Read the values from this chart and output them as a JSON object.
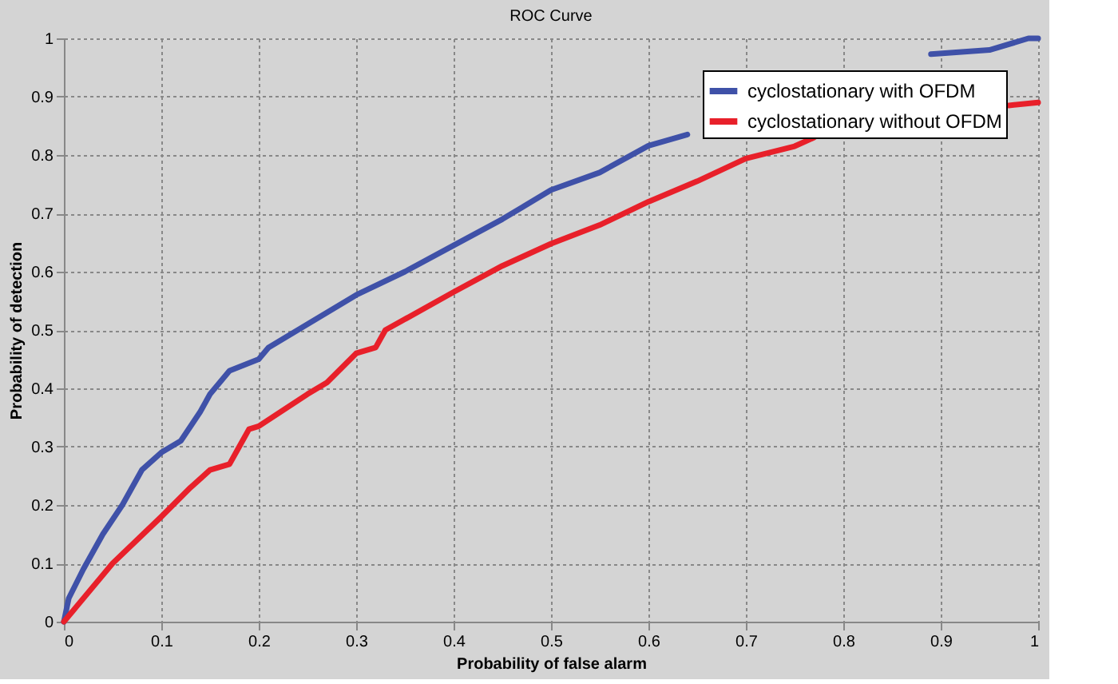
{
  "chart_data": {
    "type": "line",
    "title": "ROC Curve",
    "xlabel": "Probability of false alarm",
    "ylabel": "Probability of detection",
    "xlim": [
      0,
      1
    ],
    "ylim": [
      0,
      1
    ],
    "xticks": [
      0,
      0.1,
      0.2,
      0.3,
      0.4,
      0.5,
      0.6,
      0.7,
      0.8,
      0.9,
      1
    ],
    "yticks": [
      0,
      0.1,
      0.2,
      0.3,
      0.4,
      0.5,
      0.6,
      0.7,
      0.8,
      0.9,
      1
    ],
    "grid": true,
    "legend": "top right",
    "line_style": "solid",
    "series": [
      {
        "name": "cyclostationary with OFDM",
        "color": "#3f51a8",
        "x": [
          0,
          0.005,
          0.02,
          0.04,
          0.06,
          0.08,
          0.1,
          0.12,
          0.14,
          0.15,
          0.17,
          0.2,
          0.21,
          0.25,
          0.3,
          0.35,
          0.4,
          0.45,
          0.47,
          0.5,
          0.55,
          0.6,
          0.64,
          0.75,
          0.85,
          0.89,
          0.95,
          0.99,
          1
        ],
        "values": [
          0,
          0.04,
          0.09,
          0.15,
          0.2,
          0.26,
          0.29,
          0.31,
          0.36,
          0.39,
          0.43,
          0.45,
          0.47,
          0.51,
          0.56,
          0.6,
          0.645,
          0.69,
          0.71,
          0.74,
          0.77,
          0.816,
          0.835,
          null,
          null,
          0.973,
          0.98,
          1,
          1
        ]
      },
      {
        "name": "cyclostationary without OFDM",
        "color": "#e8202a",
        "x": [
          0,
          0.01,
          0.05,
          0.1,
          0.13,
          0.15,
          0.17,
          0.18,
          0.19,
          0.2,
          0.25,
          0.27,
          0.3,
          0.32,
          0.33,
          0.4,
          0.45,
          0.5,
          0.55,
          0.6,
          0.65,
          0.7,
          0.75,
          0.77,
          0.9,
          0.97,
          1
        ],
        "values": [
          0,
          0.02,
          0.1,
          0.18,
          0.23,
          0.26,
          0.27,
          0.3,
          0.33,
          0.335,
          0.39,
          0.41,
          0.46,
          0.47,
          0.5,
          0.565,
          0.61,
          0.648,
          0.68,
          0.72,
          0.755,
          0.794,
          0.815,
          0.83,
          null,
          0.885,
          0.89
        ]
      }
    ]
  }
}
